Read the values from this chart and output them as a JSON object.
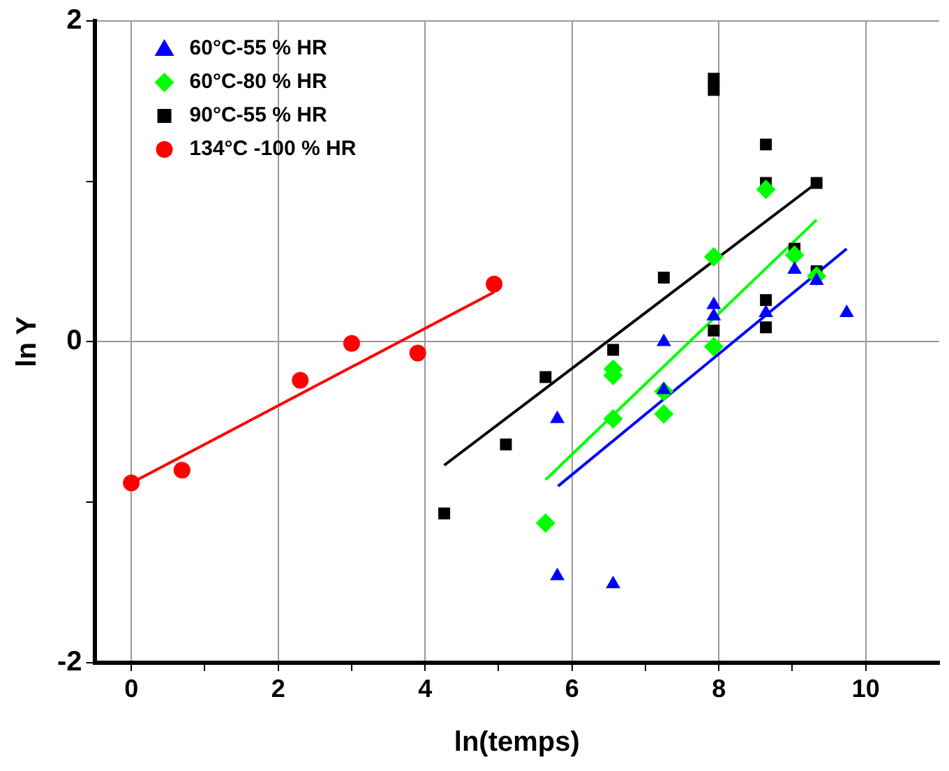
{
  "chart_data": {
    "type": "scatter",
    "xlabel": "ln(temps)",
    "ylabel": "ln Y",
    "xlim": [
      -0.5,
      11
    ],
    "ylim": [
      -2,
      2
    ],
    "xticks": [
      0,
      {
        "value": 1,
        "label": null
      },
      2,
      {
        "value": 3,
        "label": null
      },
      4,
      {
        "value": 5,
        "label": null
      },
      6,
      {
        "value": 7,
        "label": null
      },
      8,
      {
        "value": 9,
        "label": null
      },
      10
    ],
    "yticks": [
      -2,
      {
        "value": -1,
        "label": null
      },
      0,
      {
        "value": 1,
        "label": null
      },
      2
    ],
    "grid": true,
    "legend": "top left",
    "series": [
      {
        "name": "60°C-55 % HR",
        "color": "#0000ff",
        "marker": "triangle",
        "x": [
          5.8,
          5.8,
          6.56,
          7.25,
          7.25,
          7.93,
          7.93,
          8.64,
          9.03,
          9.33,
          9.74
        ],
        "values": [
          -0.48,
          -1.46,
          -1.51,
          0.0,
          -0.3,
          0.23,
          0.16,
          0.18,
          0.45,
          0.38,
          0.18
        ]
      },
      {
        "name": "60°C-80 % HR",
        "color": "#00ff00",
        "marker": "diamond",
        "x": [
          5.64,
          6.56,
          6.56,
          6.56,
          7.25,
          7.25,
          7.93,
          7.93,
          8.64,
          9.03,
          9.33
        ],
        "values": [
          -1.13,
          -0.17,
          -0.21,
          -0.48,
          -0.31,
          -0.45,
          -0.03,
          0.53,
          0.95,
          0.54,
          0.41
        ]
      },
      {
        "name": "90°C-55 % HR",
        "color": "#000000",
        "marker": "square",
        "x": [
          4.26,
          5.1,
          5.64,
          6.56,
          7.25,
          7.93,
          7.93,
          7.93,
          8.64,
          8.64,
          8.64,
          8.64,
          9.03,
          9.33,
          9.33
        ],
        "values": [
          -1.07,
          -0.64,
          -0.22,
          -0.05,
          0.4,
          1.64,
          1.57,
          0.07,
          1.23,
          0.99,
          0.26,
          0.09,
          0.58,
          0.99,
          0.44
        ]
      },
      {
        "name": "134°C -100 % HR",
        "color": "#ff0000",
        "marker": "circle",
        "x": [
          0,
          0.69,
          2.3,
          3.0,
          3.9,
          4.94
        ],
        "values": [
          -0.88,
          -0.8,
          -0.24,
          -0.01,
          -0.07,
          0.36
        ]
      },
      {
        "type": "line",
        "color": "#0000ff",
        "marker": "none",
        "x": [
          5.81,
          9.74
        ],
        "values": [
          -0.9,
          0.58
        ]
      },
      {
        "type": "line",
        "color": "#00ff00",
        "marker": "none",
        "x": [
          5.64,
          9.33
        ],
        "values": [
          -0.86,
          0.76
        ]
      },
      {
        "type": "line",
        "color": "#000000",
        "marker": "none",
        "x": [
          4.26,
          9.33
        ],
        "values": [
          -0.77,
          0.99
        ]
      },
      {
        "type": "line",
        "color": "#ff0000",
        "marker": "none",
        "x": [
          0,
          4.94
        ],
        "values": [
          -0.88,
          0.31
        ]
      }
    ]
  }
}
